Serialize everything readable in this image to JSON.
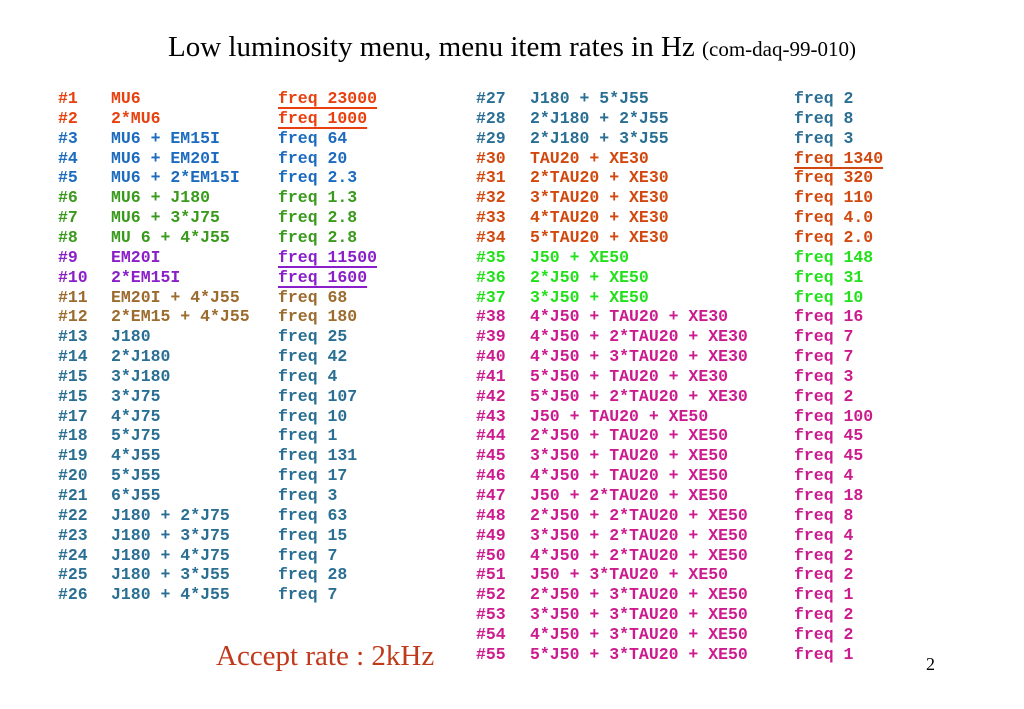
{
  "title": {
    "main": "Low luminosity menu, menu item rates in Hz ",
    "ref": "(com-daq-99-010)"
  },
  "colors": {
    "orange": "#e8410f",
    "blue": "#1c6bbf",
    "green": "#3a9a1c",
    "purple": "#8a1ec8",
    "brown": "#9c6b2e",
    "teal": "#2a6f93",
    "darkorange": "#d2480e",
    "lime": "#22e01a",
    "magenta": "#cc1b8e"
  },
  "left_rows": [
    {
      "num": "#1",
      "expr": "MU6",
      "freq": "freq 23000",
      "color": "orange",
      "underline": true
    },
    {
      "num": "#2",
      "expr": "2*MU6",
      "freq": "freq 1000",
      "color": "orange",
      "underline": true
    },
    {
      "num": "#3",
      "expr": "MU6 + EM15I",
      "freq": "freq 64",
      "color": "blue"
    },
    {
      "num": "#4",
      "expr": "MU6 + EM20I",
      "freq": "freq 20",
      "color": "blue"
    },
    {
      "num": "#5",
      "expr": "MU6 + 2*EM15I",
      "freq": "freq 2.3",
      "color": "blue"
    },
    {
      "num": "#6",
      "expr": "MU6 + J180",
      "freq": "freq 1.3",
      "color": "green"
    },
    {
      "num": "#7",
      "expr": "MU6 + 3*J75",
      "freq": "freq 2.8",
      "color": "green"
    },
    {
      "num": "#8",
      "expr": "MU 6 + 4*J55",
      "freq": "freq 2.8",
      "color": "green"
    },
    {
      "num": "#9",
      "expr": "EM20I",
      "freq": "freq 11500",
      "color": "purple",
      "underline": true
    },
    {
      "num": "#10",
      "expr": "2*EM15I",
      "freq": "freq 1600",
      "color": "purple",
      "underline": true
    },
    {
      "num": "#11",
      "expr": "EM20I + 4*J55",
      "freq": "freq 68",
      "color": "brown"
    },
    {
      "num": "#12",
      "expr": "2*EM15 + 4*J55",
      "freq": "freq 180",
      "color": "brown"
    },
    {
      "num": "#13",
      "expr": "J180",
      "freq": "freq 25",
      "color": "teal"
    },
    {
      "num": "#14",
      "expr": "2*J180",
      "freq": "freq 42",
      "color": "teal"
    },
    {
      "num": "#15",
      "expr": "3*J180",
      "freq": "freq 4",
      "color": "teal"
    },
    {
      "num": "#15",
      "expr": "3*J75",
      "freq": "freq 107",
      "color": "teal"
    },
    {
      "num": "#17",
      "expr": "4*J75",
      "freq": "freq 10",
      "color": "teal"
    },
    {
      "num": "#18",
      "expr": "5*J75",
      "freq": "freq 1",
      "color": "teal"
    },
    {
      "num": "#19",
      "expr": "4*J55",
      "freq": "freq 131",
      "color": "teal"
    },
    {
      "num": "#20",
      "expr": "5*J55",
      "freq": "freq 17",
      "color": "teal"
    },
    {
      "num": "#21",
      "expr": "6*J55",
      "freq": "freq 3",
      "color": "teal"
    },
    {
      "num": "#22",
      "expr": "J180 + 2*J75",
      "freq": "freq 63",
      "color": "teal"
    },
    {
      "num": "#23",
      "expr": "J180 + 3*J75",
      "freq": "freq 15",
      "color": "teal"
    },
    {
      "num": "#24",
      "expr": "J180 + 4*J75",
      "freq": "freq 7",
      "color": "teal"
    },
    {
      "num": "#25",
      "expr": "J180 + 3*J55",
      "freq": "freq 28",
      "color": "teal"
    },
    {
      "num": "#26",
      "expr": "J180 + 4*J55",
      "freq": "freq 7",
      "color": "teal"
    }
  ],
  "right_rows": [
    {
      "num": "#27",
      "expr": "J180 + 5*J55",
      "freq": "freq 2",
      "color": "teal"
    },
    {
      "num": "#28",
      "expr": "2*J180 + 2*J55",
      "freq": "freq 8",
      "color": "teal"
    },
    {
      "num": "#29",
      "expr": "2*J180 + 3*J55",
      "freq": "freq 3",
      "color": "teal"
    },
    {
      "num": "#30",
      "expr": "TAU20 + XE30",
      "freq": "freq 1340",
      "color": "darkorange",
      "underline": true
    },
    {
      "num": "#31",
      "expr": "2*TAU20 + XE30",
      "freq": "freq 320",
      "color": "darkorange"
    },
    {
      "num": "#32",
      "expr": "3*TAU20 + XE30",
      "freq": "freq 110",
      "color": "darkorange"
    },
    {
      "num": "#33",
      "expr": "4*TAU20 + XE30",
      "freq": "freq 4.0",
      "color": "darkorange"
    },
    {
      "num": "#34",
      "expr": "5*TAU20 + XE30",
      "freq": "freq 2.0",
      "color": "darkorange"
    },
    {
      "num": "#35",
      "expr": "J50 + XE50",
      "freq": "freq 148",
      "color": "lime"
    },
    {
      "num": "#36",
      "expr": "2*J50 + XE50",
      "freq": "freq 31",
      "color": "lime"
    },
    {
      "num": "#37",
      "expr": "3*J50 + XE50",
      "freq": "freq 10",
      "color": "lime"
    },
    {
      "num": "#38",
      "expr": "4*J50 + TAU20 + XE30",
      "freq": "freq 16",
      "color": "magenta"
    },
    {
      "num": "#39",
      "expr": "4*J50 + 2*TAU20 + XE30",
      "freq": "freq 7",
      "color": "magenta"
    },
    {
      "num": "#40",
      "expr": "4*J50 + 3*TAU20 + XE30",
      "freq": "freq 7",
      "color": "magenta"
    },
    {
      "num": "#41",
      "expr": "5*J50 + TAU20 + XE30",
      "freq": "freq 3",
      "color": "magenta"
    },
    {
      "num": "#42",
      "expr": "5*J50 + 2*TAU20 + XE30",
      "freq": "freq 2",
      "color": "magenta"
    },
    {
      "num": "#43",
      "expr": "J50 + TAU20 + XE50",
      "freq": "freq 100",
      "color": "magenta"
    },
    {
      "num": "#44",
      "expr": "2*J50 + TAU20 + XE50",
      "freq": "freq 45",
      "color": "magenta"
    },
    {
      "num": "#45",
      "expr": "3*J50 + TAU20 + XE50",
      "freq": "freq 45",
      "color": "magenta"
    },
    {
      "num": "#46",
      "expr": "4*J50 + TAU20 + XE50",
      "freq": "freq 4",
      "color": "magenta"
    },
    {
      "num": "#47",
      "expr": "J50 + 2*TAU20 + XE50",
      "freq": "freq 18",
      "color": "magenta"
    },
    {
      "num": "#48",
      "expr": "2*J50 + 2*TAU20 + XE50",
      "freq": "freq 8",
      "color": "magenta"
    },
    {
      "num": "#49",
      "expr": "3*J50 + 2*TAU20 + XE50",
      "freq": "freq 4",
      "color": "magenta"
    },
    {
      "num": "#50",
      "expr": "4*J50 + 2*TAU20 + XE50",
      "freq": "freq 2",
      "color": "magenta"
    },
    {
      "num": "#51",
      "expr": "J50 + 3*TAU20 + XE50",
      "freq": "freq 2",
      "color": "magenta"
    },
    {
      "num": "#52",
      "expr": "2*J50 + 3*TAU20 + XE50",
      "freq": "freq 1",
      "color": "magenta"
    },
    {
      "num": "#53",
      "expr": "3*J50 + 3*TAU20 + XE50",
      "freq": "freq 2",
      "color": "magenta"
    },
    {
      "num": "#54",
      "expr": "4*J50 + 3*TAU20 + XE50",
      "freq": "freq 2",
      "color": "magenta"
    },
    {
      "num": "#55",
      "expr": "5*J50 + 3*TAU20 + XE50",
      "freq": "freq 1",
      "color": "magenta"
    }
  ],
  "accept_rate": "Accept rate : 2kHz",
  "accept_color": "#c0391b",
  "page_number": "2"
}
